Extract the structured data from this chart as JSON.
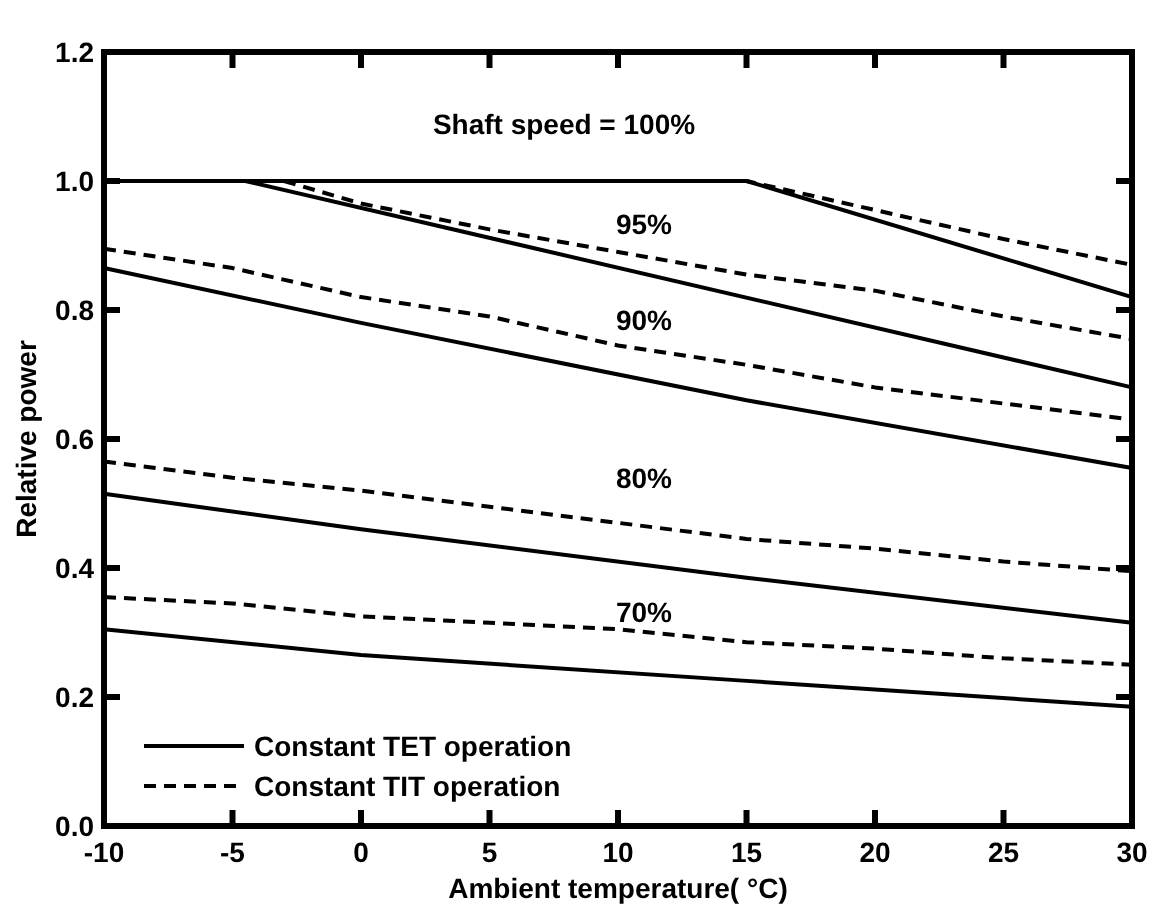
{
  "chart_data": {
    "type": "line",
    "xlabel": "Ambient temperature( °C)",
    "ylabel": "Relative power",
    "xlim": [
      -10,
      30
    ],
    "xticks": [
      -10,
      -5,
      0,
      5,
      10,
      15,
      20,
      25,
      30
    ],
    "ylim": [
      0,
      1.2
    ],
    "yticks": [
      {
        "value": 0,
        "label": "0.0"
      },
      {
        "value": 0.2,
        "label": "0.2"
      },
      {
        "value": 0.4,
        "label": "0.4"
      },
      {
        "value": 0.6,
        "label": "0.6"
      },
      {
        "value": 0.8,
        "label": "0.8"
      },
      {
        "value": 1.0,
        "label": "1.0"
      },
      {
        "value": 1.2,
        "label": "1.2"
      }
    ],
    "grid": false,
    "legend": "bottom left",
    "series": [
      {
        "name": "Constant TET operation",
        "color": "#000000",
        "line_style": "solid",
        "x": [
          -10,
          15,
          30
        ],
        "values": [
          1.0,
          1.0,
          0.82
        ]
      },
      {
        "name": "Constant TIT operation",
        "color": "#000000",
        "line_style": "dashed",
        "x": [
          -10,
          15,
          20,
          25,
          30
        ],
        "values": [
          1.0,
          1.0,
          0.955,
          0.91,
          0.87
        ]
      },
      {
        "color": "#000000",
        "line_style": "solid",
        "x": [
          -10,
          -4.5,
          30
        ],
        "values": [
          1.0,
          1.0,
          0.68
        ]
      },
      {
        "color": "#000000",
        "line_style": "dashed",
        "x": [
          -10,
          -3,
          0,
          5,
          10,
          15,
          20,
          25,
          30
        ],
        "values": [
          1.0,
          1.0,
          0.965,
          0.925,
          0.89,
          0.855,
          0.83,
          0.79,
          0.755
        ]
      },
      {
        "color": "#000000",
        "line_style": "solid",
        "x": [
          -10,
          0,
          15,
          30
        ],
        "values": [
          0.865,
          0.78,
          0.66,
          0.555
        ]
      },
      {
        "color": "#000000",
        "line_style": "dashed",
        "x": [
          -10,
          -5,
          0,
          5,
          10,
          15,
          20,
          25,
          30
        ],
        "values": [
          0.895,
          0.865,
          0.82,
          0.79,
          0.745,
          0.715,
          0.68,
          0.655,
          0.63
        ]
      },
      {
        "color": "#000000",
        "line_style": "solid",
        "x": [
          -10,
          0,
          15,
          30
        ],
        "values": [
          0.515,
          0.46,
          0.385,
          0.315
        ]
      },
      {
        "color": "#000000",
        "line_style": "dashed",
        "x": [
          -10,
          -5,
          0,
          5,
          10,
          15,
          20,
          25,
          30
        ],
        "values": [
          0.565,
          0.54,
          0.52,
          0.495,
          0.47,
          0.445,
          0.43,
          0.41,
          0.395
        ]
      },
      {
        "color": "#000000",
        "line_style": "solid",
        "x": [
          -10,
          0,
          15,
          30
        ],
        "values": [
          0.305,
          0.265,
          0.225,
          0.185
        ]
      },
      {
        "color": "#000000",
        "line_style": "dashed",
        "x": [
          -10,
          -5,
          0,
          5,
          10,
          15,
          20,
          25,
          30
        ],
        "values": [
          0.355,
          0.345,
          0.325,
          0.315,
          0.305,
          0.285,
          0.275,
          0.26,
          0.25
        ]
      }
    ],
    "annotations": [
      "Shaft speed = 100%",
      "95%",
      "90%",
      "80%",
      "70%"
    ]
  }
}
